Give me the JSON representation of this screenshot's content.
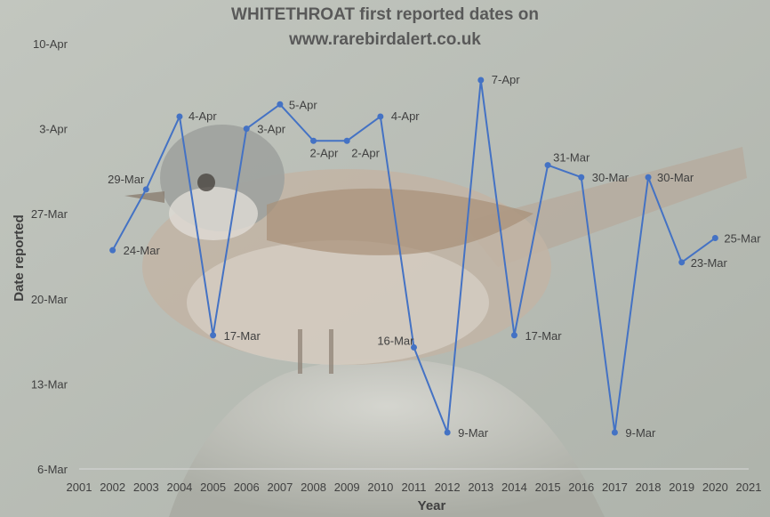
{
  "chart_data": {
    "type": "line",
    "title_line1": "WHITETHROAT first reported dates on",
    "title_line2": "www.rarebirdalert.co.uk",
    "xlabel": "Year",
    "ylabel": "Date reported",
    "x_ticks": [
      "2001",
      "2002",
      "2003",
      "2004",
      "2005",
      "2006",
      "2007",
      "2008",
      "2009",
      "2010",
      "2011",
      "2012",
      "2013",
      "2014",
      "2015",
      "2016",
      "2017",
      "2018",
      "2019",
      "2020",
      "2021"
    ],
    "y_ticks": [
      "6-Mar",
      "13-Mar",
      "20-Mar",
      "27-Mar",
      "3-Apr",
      "10-Apr"
    ],
    "xlim": [
      2001,
      2021
    ],
    "ylim": [
      "6-Mar",
      "10-Apr"
    ],
    "series": [
      {
        "color": "#4472c4",
        "points": [
          {
            "x": 2002,
            "y": "24-Mar"
          },
          {
            "x": 2003,
            "y": "29-Mar"
          },
          {
            "x": 2004,
            "y": "4-Apr"
          },
          {
            "x": 2005,
            "y": "17-Mar"
          },
          {
            "x": 2006,
            "y": "3-Apr"
          },
          {
            "x": 2007,
            "y": "5-Apr"
          },
          {
            "x": 2008,
            "y": "2-Apr"
          },
          {
            "x": 2009,
            "y": "2-Apr"
          },
          {
            "x": 2010,
            "y": "4-Apr"
          },
          {
            "x": 2011,
            "y": "16-Mar"
          },
          {
            "x": 2012,
            "y": "9-Mar"
          },
          {
            "x": 2013,
            "y": "7-Apr"
          },
          {
            "x": 2014,
            "y": "17-Mar"
          },
          {
            "x": 2015,
            "y": "31-Mar"
          },
          {
            "x": 2016,
            "y": "30-Mar"
          },
          {
            "x": 2017,
            "y": "9-Mar"
          },
          {
            "x": 2018,
            "y": "30-Mar"
          },
          {
            "x": 2019,
            "y": "23-Mar"
          },
          {
            "x": 2020,
            "y": "25-Mar"
          }
        ]
      }
    ],
    "grid": false,
    "legend": "none"
  }
}
